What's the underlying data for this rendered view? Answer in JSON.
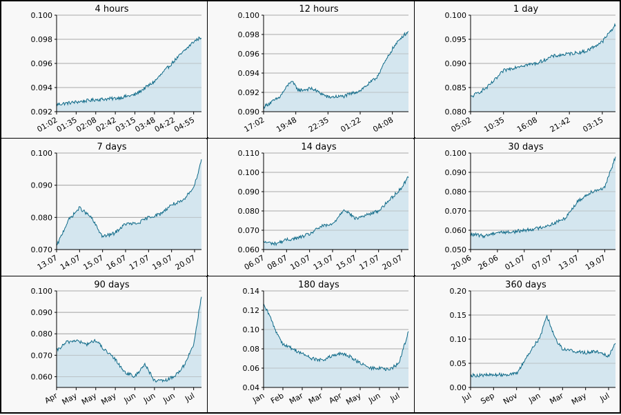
{
  "colors": {
    "line": "#0f6a88",
    "fill": "#d4e6ef",
    "grid": "#a8a8a8",
    "border": "#000000",
    "background": "#f8f8f8"
  },
  "chart_data": [
    {
      "type": "area",
      "title": "4 hours",
      "ylim": [
        0.092,
        0.1
      ],
      "yticks": [
        "0.092",
        "0.094",
        "0.096",
        "0.098",
        "0.100"
      ],
      "xticks": [
        "01:02",
        "01:35",
        "02:08",
        "02:42",
        "03:15",
        "03:48",
        "04:22",
        "04:55"
      ],
      "x": [
        0,
        1,
        2,
        3,
        4,
        5,
        6,
        7,
        7.4
      ],
      "values": [
        0.0926,
        0.0928,
        0.093,
        0.0931,
        0.0934,
        0.0945,
        0.0962,
        0.0978,
        0.0982
      ],
      "grid": true
    },
    {
      "type": "area",
      "title": "12 hours",
      "ylim": [
        0.09,
        0.1
      ],
      "yticks": [
        "0.090",
        "0.092",
        "0.094",
        "0.096",
        "0.098",
        "0.100"
      ],
      "xticks": [
        "17:02",
        "19:48",
        "22:35",
        "01:22",
        "04:08"
      ],
      "x": [
        0,
        0.5,
        0.85,
        1.1,
        1.5,
        2,
        2.5,
        3,
        3.5,
        4,
        4.3,
        4.5
      ],
      "values": [
        0.0905,
        0.0915,
        0.0932,
        0.0922,
        0.0924,
        0.0915,
        0.0916,
        0.0922,
        0.0935,
        0.0965,
        0.0978,
        0.0983
      ],
      "grid": true
    },
    {
      "type": "area",
      "title": "1 day",
      "ylim": [
        0.08,
        0.1
      ],
      "yticks": [
        "0.080",
        "0.085",
        "0.090",
        "0.095",
        "0.100"
      ],
      "xticks": [
        "05:02",
        "10:35",
        "16:08",
        "21:42",
        "03:15"
      ],
      "x": [
        0,
        0.5,
        0.8,
        1.0,
        1.5,
        2,
        2.5,
        3,
        3.5,
        4,
        4.4
      ],
      "values": [
        0.083,
        0.085,
        0.087,
        0.0885,
        0.0895,
        0.09,
        0.0915,
        0.092,
        0.0925,
        0.0945,
        0.098
      ],
      "grid": true
    },
    {
      "type": "area",
      "title": "7 days",
      "ylim": [
        0.07,
        0.1
      ],
      "yticks": [
        "0.070",
        "0.080",
        "0.090",
        "0.100"
      ],
      "xticks": [
        "13.07",
        "14.07",
        "15.07",
        "16.07",
        "17.07",
        "19.07",
        "20.07"
      ],
      "x": [
        0,
        0.5,
        1,
        1.5,
        2,
        2.5,
        3,
        3.5,
        4,
        4.5,
        5,
        5.5,
        6,
        6.3
      ],
      "values": [
        0.071,
        0.079,
        0.083,
        0.08,
        0.074,
        0.075,
        0.078,
        0.078,
        0.08,
        0.081,
        0.084,
        0.085,
        0.09,
        0.098
      ],
      "grid": true
    },
    {
      "type": "area",
      "title": "14 days",
      "ylim": [
        0.06,
        0.11
      ],
      "yticks": [
        "0.060",
        "0.070",
        "0.080",
        "0.090",
        "0.100",
        "0.110"
      ],
      "xticks": [
        "06.07",
        "08.07",
        "10.07",
        "13.07",
        "15.07",
        "17.07",
        "20.07"
      ],
      "x": [
        0,
        0.5,
        1,
        1.5,
        2,
        2.5,
        3,
        3.5,
        4,
        4.5,
        5,
        5.5,
        6,
        6.3
      ],
      "values": [
        0.064,
        0.063,
        0.065,
        0.066,
        0.068,
        0.072,
        0.073,
        0.081,
        0.076,
        0.078,
        0.08,
        0.086,
        0.092,
        0.098
      ],
      "grid": true
    },
    {
      "type": "area",
      "title": "30 days",
      "ylim": [
        0.05,
        0.1
      ],
      "yticks": [
        "0.050",
        "0.060",
        "0.070",
        "0.080",
        "0.090",
        "0.100"
      ],
      "xticks": [
        "20.06",
        "26.06",
        "01.07",
        "07.07",
        "13.07",
        "19.07"
      ],
      "x": [
        0,
        0.5,
        1,
        1.5,
        2,
        2.5,
        3,
        3.5,
        4,
        4.5,
        5,
        5.4
      ],
      "values": [
        0.058,
        0.057,
        0.059,
        0.059,
        0.06,
        0.061,
        0.063,
        0.066,
        0.075,
        0.08,
        0.082,
        0.098
      ],
      "grid": true
    },
    {
      "type": "area",
      "title": "90 days",
      "ylim": [
        0.055,
        0.1
      ],
      "yticks": [
        "0.060",
        "0.070",
        "0.080",
        "0.090",
        "0.100"
      ],
      "xticks": [
        "Apr",
        "May",
        "May",
        "May",
        "Jun",
        "Jun",
        "Jun",
        "Jul"
      ],
      "x": [
        0,
        0.5,
        1,
        1.5,
        2,
        2.5,
        3,
        3.5,
        4,
        4.5,
        5,
        5.5,
        6,
        6.5,
        7,
        7.4
      ],
      "values": [
        0.072,
        0.076,
        0.077,
        0.075,
        0.077,
        0.072,
        0.068,
        0.062,
        0.06,
        0.066,
        0.058,
        0.058,
        0.06,
        0.065,
        0.075,
        0.098
      ],
      "grid": true
    },
    {
      "type": "area",
      "title": "180 days",
      "ylim": [
        0.04,
        0.14
      ],
      "yticks": [
        "0.04",
        "0.06",
        "0.08",
        "0.10",
        "0.12",
        "0.14"
      ],
      "xticks": [
        "Jan",
        "Feb",
        "Mar",
        "Mar",
        "Apr",
        "May",
        "Jun",
        "Jul"
      ],
      "x": [
        0,
        0.3,
        0.6,
        1,
        1.5,
        2,
        2.5,
        3,
        3.5,
        4,
        4.5,
        5,
        5.5,
        6,
        6.5,
        7,
        7.5
      ],
      "values": [
        0.125,
        0.115,
        0.1,
        0.085,
        0.08,
        0.075,
        0.07,
        0.068,
        0.072,
        0.075,
        0.072,
        0.065,
        0.06,
        0.06,
        0.058,
        0.065,
        0.098
      ],
      "grid": true
    },
    {
      "type": "area",
      "title": "360 days",
      "ylim": [
        0.0,
        0.2
      ],
      "yticks": [
        "0.00",
        "0.05",
        "0.10",
        "0.15",
        "0.20"
      ],
      "xticks": [
        "Jul",
        "Sep",
        "Nov",
        "Jan",
        "Mar",
        "May",
        "Jul"
      ],
      "x": [
        0,
        0.3,
        1,
        2,
        2.4,
        2.8,
        3.0,
        3.3,
        3.7,
        4,
        4.5,
        5,
        5.5,
        6,
        6.3
      ],
      "values": [
        0.025,
        0.025,
        0.026,
        0.028,
        0.06,
        0.09,
        0.1,
        0.15,
        0.1,
        0.08,
        0.075,
        0.072,
        0.075,
        0.065,
        0.095
      ],
      "grid": true
    }
  ]
}
